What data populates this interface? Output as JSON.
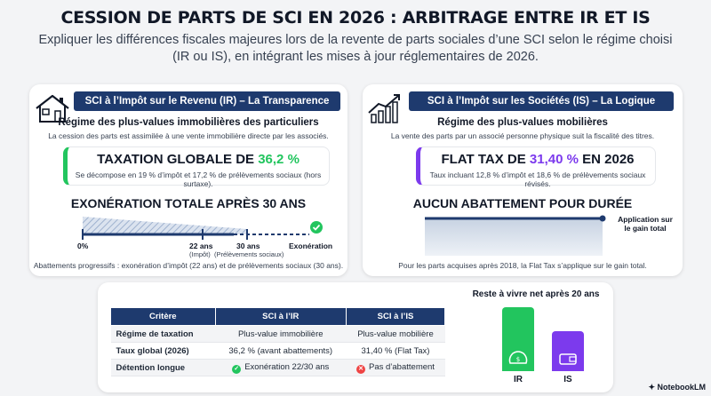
{
  "title": "CESSION DE PARTS DE SCI EN 2026 : ARBITRAGE ENTRE IR ET IS",
  "subtitle": "Expliquer les différences fiscales majeures lors de la revente de parts sociales d’une SCI selon le régime choisi (IR ou IS), en intégrant les mises à jour réglementaires de 2026.",
  "left": {
    "banner": "SCI à l’Impôt sur le Revenu (IR) – La Transparence",
    "section_head": "Régime des plus-values immobilières des particuliers",
    "section_text": "La cession des parts est assimilée à une vente immobilière directe par les associés.",
    "tax_prefix": "TAXATION GLOBALE DE ",
    "tax_value": "36,2 %",
    "tax_sub": "Se décompose en 19 % d’impôt et 17,2 % de prélèvements sociaux (hors surtaxe).",
    "big_head": "EXONÉRATION TOTALE APRÈS 30 ANS",
    "timeline": {
      "t0": "0%",
      "t22": "22 ans",
      "t22_sub": "(Impôt)",
      "t30": "30 ans",
      "t30_sub": "(Prélèvements sociaux)",
      "end": "Exonération"
    },
    "footnote": "Abattements progressifs : exonération d’impôt (22 ans) et de prélèvements sociaux (30 ans)."
  },
  "right": {
    "banner": "SCI à l’Impôt sur les Sociétés (IS) – La Logique Mobilière",
    "section_head": "Régime des plus-values mobilières",
    "section_text": "La vente des parts par un associé personne physique suit la fiscalité des titres.",
    "tax_prefix": "FLAT TAX DE ",
    "tax_value": "31,40 %",
    "tax_suffix": " EN 2026",
    "tax_sub": "Taux incluant 12,8 % d’impôt et 18,6 % de prélèvements sociaux révisés.",
    "big_head": "AUCUN ABATTEMENT POUR DURÉE",
    "arrow_label_1": "Application sur",
    "arrow_label_2": "le gain total",
    "footnote": "Pour les parts acquises après 2018, la Flat Tax s’applique sur le gain total."
  },
  "table": {
    "headers": [
      "Critère",
      "SCI à l’IR",
      "SCI à l’IS"
    ],
    "rows": [
      {
        "crit": "Régime de taxation",
        "ir": "Plus-value immobilière",
        "is": "Plus-value mobilière"
      },
      {
        "crit": "Taux global (2026)",
        "ir": "36,2 % (avant abattements)",
        "is": "31,40 % (Flat Tax)"
      },
      {
        "crit": "Détention longue",
        "ir": "Exonération 22/30 ans",
        "is": "Pas d’abattement"
      }
    ]
  },
  "mini_chart": {
    "title": "Reste à vivre net après 20 ans",
    "bars": [
      {
        "label": "IR",
        "level": 1.0,
        "color": "#22c55e"
      },
      {
        "label": "IS",
        "level": 0.63,
        "color": "#7c3aed"
      }
    ]
  },
  "brand": "NotebookLM",
  "colors": {
    "navy": "#1e3a6e",
    "green": "#22c55e",
    "purple": "#7c3aed"
  }
}
